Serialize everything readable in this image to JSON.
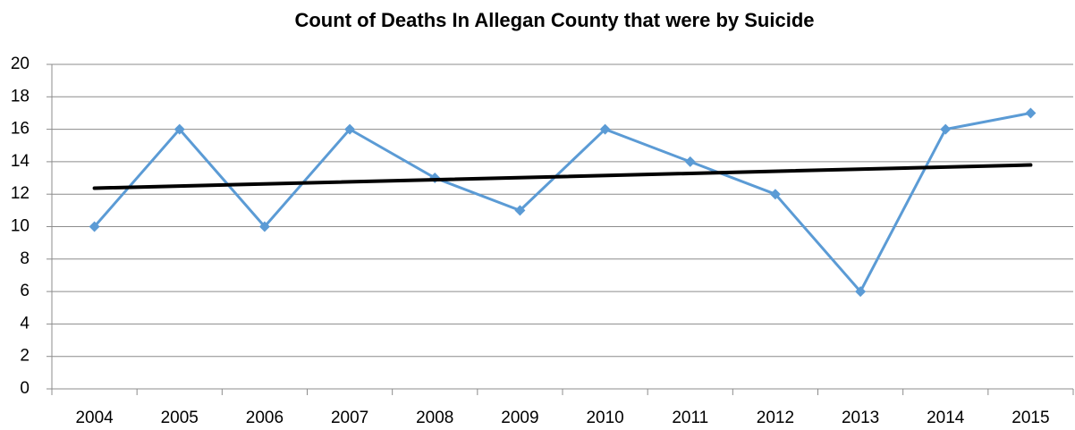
{
  "chart_data": {
    "type": "line",
    "title": "Count of Deaths In Allegan County that were by Suicide",
    "categories": [
      "2004",
      "2005",
      "2006",
      "2007",
      "2008",
      "2009",
      "2010",
      "2011",
      "2012",
      "2013",
      "2014",
      "2015"
    ],
    "series": [
      {
        "color": "#5b9bd5",
        "values": [
          10,
          16,
          10,
          16,
          13,
          11,
          16,
          14,
          12,
          6,
          16,
          17
        ]
      }
    ],
    "trendline": {
      "color": "#000000",
      "values": [
        12.37,
        13.8
      ]
    },
    "ylim": [
      0,
      20
    ],
    "yticks": [
      0,
      2,
      4,
      6,
      8,
      10,
      12,
      14,
      16,
      18,
      20
    ],
    "grid": true
  }
}
